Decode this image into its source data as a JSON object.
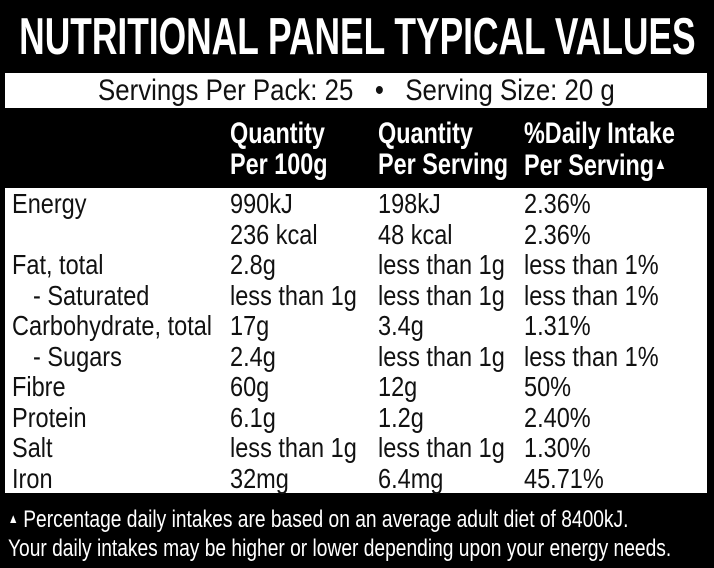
{
  "header": {
    "title": "NUTRITIONAL PANEL TYPICAL VALUES"
  },
  "servings": {
    "text": "Servings Per Pack: 25   •   Serving Size: 20 g"
  },
  "table": {
    "columns": [
      {
        "line1": "Quantity",
        "line2": "Per 100g"
      },
      {
        "line1": "Quantity",
        "line2": "Per Serving"
      },
      {
        "line1": "%Daily Intake",
        "line2": "Per Serving",
        "marker": "▲"
      }
    ],
    "rows": [
      {
        "label": "Energy",
        "indent": false,
        "per100g": "990kJ",
        "perServing": "198kJ",
        "dailyIntake": "2.36%"
      },
      {
        "label": "",
        "indent": false,
        "per100g": "236 kcal",
        "perServing": "48 kcal",
        "dailyIntake": "2.36%"
      },
      {
        "label": "Fat, total",
        "indent": false,
        "per100g": "2.8g",
        "perServing": "less than 1g",
        "dailyIntake": "less than 1%"
      },
      {
        "label": "- Saturated",
        "indent": true,
        "per100g": "less than 1g",
        "perServing": "less than 1g",
        "dailyIntake": "less than 1%"
      },
      {
        "label": "Carbohydrate, total",
        "indent": false,
        "per100g": "17g",
        "perServing": "3.4g",
        "dailyIntake": "1.31%"
      },
      {
        "label": "- Sugars",
        "indent": true,
        "per100g": "2.4g",
        "perServing": "less than 1g",
        "dailyIntake": "less than 1%"
      },
      {
        "label": "Fibre",
        "indent": false,
        "per100g": "60g",
        "perServing": "12g",
        "dailyIntake": "50%"
      },
      {
        "label": "Protein",
        "indent": false,
        "per100g": "6.1g",
        "perServing": "1.2g",
        "dailyIntake": "2.40%"
      },
      {
        "label": "Salt",
        "indent": false,
        "per100g": "less than 1g",
        "perServing": "less than 1g",
        "dailyIntake": "1.30%"
      },
      {
        "label": "Iron",
        "indent": false,
        "per100g": "32mg",
        "perServing": "6.4mg",
        "dailyIntake": "45.71%"
      }
    ]
  },
  "footnote": {
    "marker": "▲",
    "line1": "Percentage daily intakes are based on an average adult diet of 8400kJ.",
    "line2": "Your daily intakes may be higher or lower depending upon your energy needs."
  },
  "colors": {
    "background": "#000000",
    "panel": "#ffffff",
    "text": "#111111",
    "inverse_text": "#ffffff"
  }
}
